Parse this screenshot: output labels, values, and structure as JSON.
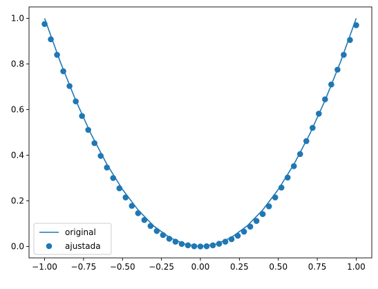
{
  "chart_data": {
    "type": "line",
    "title": "",
    "xlabel": "",
    "ylabel": "",
    "xlim": [
      -1.1,
      1.1
    ],
    "ylim": [
      -0.05,
      1.05
    ],
    "grid": false,
    "legend_position": "lower-left",
    "x_ticks": [
      -1.0,
      -0.75,
      -0.5,
      -0.25,
      0.0,
      0.25,
      0.5,
      0.75,
      1.0
    ],
    "x_tick_labels": [
      "−1.00",
      "−0.75",
      "−0.50",
      "−0.25",
      "0.00",
      "0.25",
      "0.50",
      "0.75",
      "1.00"
    ],
    "y_ticks": [
      0.0,
      0.2,
      0.4,
      0.6,
      0.8,
      1.0
    ],
    "y_tick_labels": [
      "0.0",
      "0.2",
      "0.4",
      "0.6",
      "0.8",
      "1.0"
    ],
    "series": [
      {
        "name": "original",
        "kind": "line",
        "color": "#1f77b4",
        "x": [
          -1.0,
          -0.9,
          -0.8,
          -0.7,
          -0.6,
          -0.5,
          -0.4,
          -0.3,
          -0.2,
          -0.1,
          0.0,
          0.1,
          0.2,
          0.3,
          0.4,
          0.5,
          0.6,
          0.7,
          0.8,
          0.9,
          1.0
        ],
        "y": [
          1.0,
          0.81,
          0.64,
          0.49,
          0.36,
          0.25,
          0.16,
          0.09,
          0.04,
          0.01,
          0.0,
          0.01,
          0.04,
          0.09,
          0.16,
          0.25,
          0.36,
          0.49,
          0.64,
          0.81,
          1.0
        ]
      },
      {
        "name": "ajustada",
        "kind": "scatter",
        "color": "#1f77b4",
        "x": [
          -1.0,
          -0.96,
          -0.92,
          -0.88,
          -0.84,
          -0.8,
          -0.76,
          -0.72,
          -0.68,
          -0.64,
          -0.6,
          -0.56,
          -0.52,
          -0.48,
          -0.44,
          -0.4,
          -0.36,
          -0.32,
          -0.28,
          -0.24,
          -0.2,
          -0.16,
          -0.12,
          -0.08,
          -0.04,
          0.0,
          0.04,
          0.08,
          0.12,
          0.16,
          0.2,
          0.24,
          0.28,
          0.32,
          0.36,
          0.4,
          0.44,
          0.48,
          0.52,
          0.56,
          0.6,
          0.64,
          0.68,
          0.72,
          0.76,
          0.8,
          0.84,
          0.88,
          0.92,
          0.96,
          1.0
        ],
        "y": [
          0.975,
          0.908,
          0.84,
          0.768,
          0.703,
          0.636,
          0.572,
          0.511,
          0.453,
          0.397,
          0.346,
          0.3,
          0.255,
          0.215,
          0.178,
          0.146,
          0.116,
          0.09,
          0.068,
          0.05,
          0.034,
          0.021,
          0.011,
          0.005,
          0.001,
          0.0,
          0.001,
          0.005,
          0.012,
          0.021,
          0.032,
          0.047,
          0.065,
          0.087,
          0.112,
          0.142,
          0.176,
          0.215,
          0.258,
          0.302,
          0.352,
          0.405,
          0.462,
          0.52,
          0.582,
          0.645,
          0.71,
          0.775,
          0.84,
          0.905,
          0.97
        ]
      }
    ]
  }
}
